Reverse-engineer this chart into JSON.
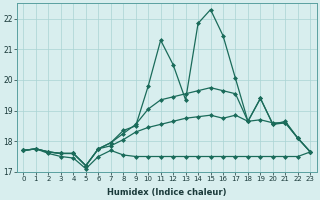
{
  "xlabel": "Humidex (Indice chaleur)",
  "bg_color": "#d8eeee",
  "line_color": "#1a6b5a",
  "grid_color": "#aad4d4",
  "xlim": [
    -0.5,
    23.5
  ],
  "ylim": [
    17.0,
    22.5
  ],
  "yticks": [
    17,
    18,
    19,
    20,
    21,
    22
  ],
  "xticks": [
    0,
    1,
    2,
    3,
    4,
    5,
    6,
    7,
    8,
    9,
    10,
    11,
    12,
    13,
    14,
    15,
    16,
    17,
    18,
    19,
    20,
    21,
    22,
    23
  ],
  "series": [
    [
      17.7,
      17.75,
      17.6,
      17.5,
      17.45,
      17.1,
      17.5,
      17.7,
      17.55,
      17.5,
      17.5,
      17.5,
      17.5,
      17.5,
      17.5,
      17.5,
      17.5,
      17.5,
      17.5,
      17.5,
      17.5,
      17.5,
      17.5,
      17.65
    ],
    [
      17.7,
      17.75,
      17.65,
      17.6,
      17.6,
      17.2,
      17.75,
      17.85,
      18.05,
      18.3,
      18.45,
      18.55,
      18.65,
      18.75,
      18.8,
      18.85,
      18.75,
      18.85,
      18.65,
      18.7,
      18.6,
      18.6,
      18.1,
      17.65
    ],
    [
      17.7,
      17.75,
      17.65,
      17.6,
      17.6,
      17.2,
      17.75,
      17.95,
      18.25,
      18.55,
      19.05,
      19.35,
      19.45,
      19.55,
      19.65,
      19.75,
      19.65,
      19.55,
      18.65,
      19.4,
      18.55,
      18.6,
      18.1,
      17.65
    ],
    [
      17.7,
      17.75,
      17.65,
      17.6,
      17.6,
      17.2,
      17.75,
      17.95,
      18.35,
      18.5,
      19.8,
      21.3,
      20.5,
      19.35,
      21.85,
      22.3,
      21.45,
      20.05,
      18.65,
      19.4,
      18.55,
      18.65,
      18.1,
      17.65
    ]
  ],
  "marker": "D",
  "markersize": 2.0,
  "linewidth": 0.9
}
